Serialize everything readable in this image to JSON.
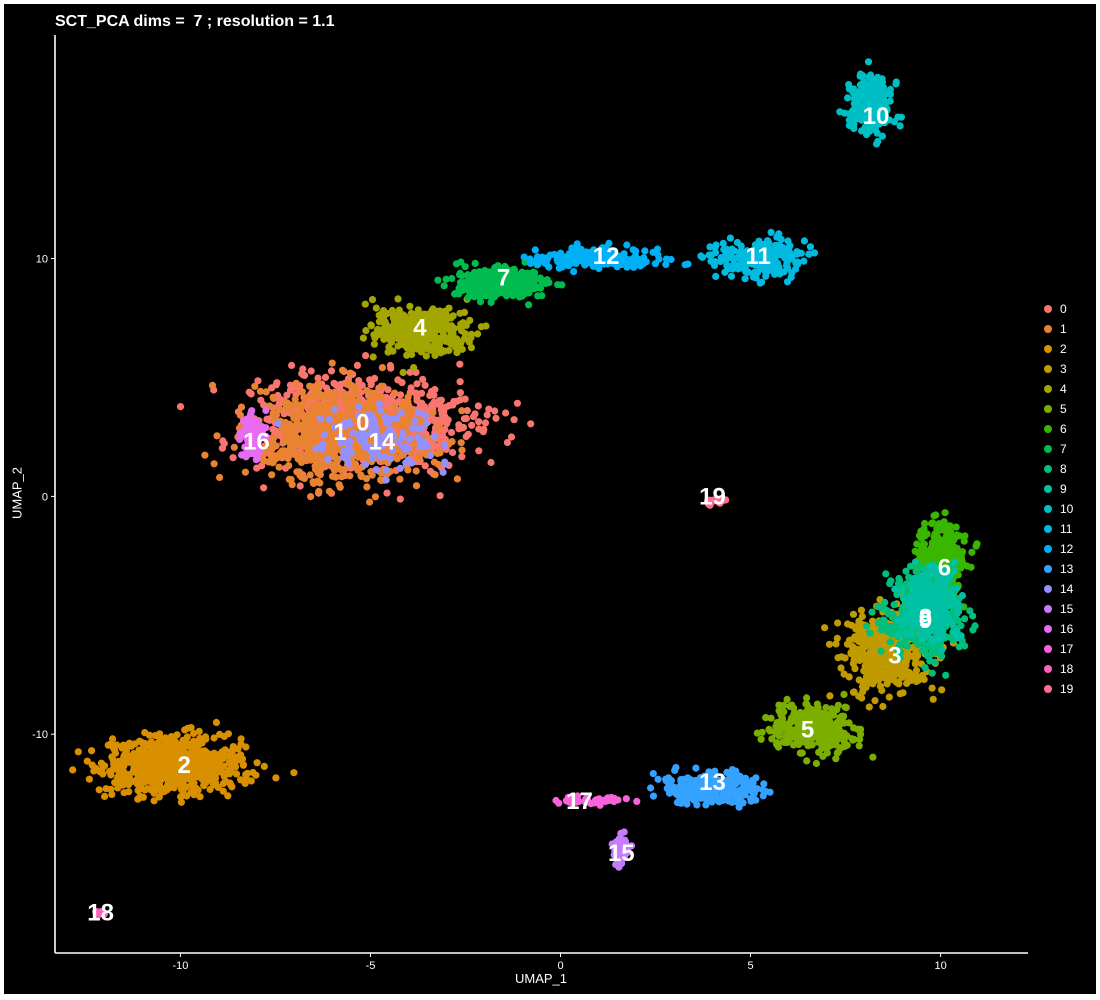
{
  "chart_data": {
    "type": "scatter",
    "title": "SCT_PCA dims =  7 ; resolution = 1.1",
    "xlabel": "UMAP_1",
    "ylabel": "UMAP_2",
    "xlim": [
      -13.3,
      12.3
    ],
    "ylim": [
      -19.2,
      19.4
    ],
    "x_ticks": [
      -10,
      -5,
      0,
      5,
      10
    ],
    "y_ticks": [
      -10,
      0,
      10
    ],
    "grid": false,
    "legend_position": "right",
    "background": "#000000",
    "axis_color": "#ffffff",
    "text_color": "#ffffff",
    "series": [
      {
        "name": "0",
        "color": "#F8766D",
        "center": [
          -5.2,
          3.1
        ],
        "label_pos": [
          -5.2,
          3.1
        ],
        "spread": [
          2.3,
          1.6
        ],
        "n": 900
      },
      {
        "name": "1",
        "color": "#EA8331",
        "center": [
          -5.8,
          2.6
        ],
        "label_pos": [
          -5.8,
          2.7
        ],
        "spread": [
          2.0,
          1.5
        ],
        "n": 700
      },
      {
        "name": "2",
        "color": "#D89000",
        "center": [
          -10.2,
          -11.3
        ],
        "label_pos": [
          -9.9,
          -11.3
        ],
        "spread": [
          1.5,
          0.9
        ],
        "n": 800
      },
      {
        "name": "3",
        "color": "#C09B00",
        "center": [
          8.6,
          -6.5
        ],
        "label_pos": [
          8.8,
          -6.7
        ],
        "spread": [
          0.9,
          1.4
        ],
        "n": 500
      },
      {
        "name": "4",
        "color": "#A3A500",
        "center": [
          -3.7,
          7.0
        ],
        "label_pos": [
          -3.7,
          7.1
        ],
        "spread": [
          1.0,
          0.8
        ],
        "n": 350
      },
      {
        "name": "5",
        "color": "#7CAE00",
        "center": [
          6.6,
          -9.8
        ],
        "label_pos": [
          6.5,
          -9.8
        ],
        "spread": [
          0.9,
          0.8
        ],
        "n": 350
      },
      {
        "name": "6",
        "color": "#39B600",
        "center": [
          10.0,
          -2.8
        ],
        "label_pos": [
          10.1,
          -3.0
        ],
        "spread": [
          0.5,
          1.4
        ],
        "n": 350
      },
      {
        "name": "7",
        "color": "#00BB4E",
        "center": [
          -1.6,
          8.9
        ],
        "label_pos": [
          -1.5,
          9.2
        ],
        "spread": [
          1.0,
          0.55
        ],
        "n": 350
      },
      {
        "name": "8",
        "color": "#00BF7D",
        "center": [
          9.5,
          -5.0
        ],
        "label_pos": [
          9.6,
          -5.1
        ],
        "spread": [
          0.8,
          1.4
        ],
        "n": 400
      },
      {
        "name": "9",
        "color": "#00C1A3",
        "center": [
          9.7,
          -4.5
        ],
        "label_pos": [
          9.6,
          -5.2
        ],
        "spread": [
          0.6,
          1.3
        ],
        "n": 300
      },
      {
        "name": "10",
        "color": "#00BFC4",
        "center": [
          8.2,
          16.5
        ],
        "label_pos": [
          8.3,
          16.0
        ],
        "spread": [
          0.5,
          1.0
        ],
        "n": 220
      },
      {
        "name": "11",
        "color": "#00BAE0",
        "center": [
          5.2,
          10.0
        ],
        "label_pos": [
          5.2,
          10.1
        ],
        "spread": [
          0.9,
          0.6
        ],
        "n": 260
      },
      {
        "name": "12",
        "color": "#00B0F6",
        "center": [
          1.0,
          10.0
        ],
        "label_pos": [
          1.2,
          10.1
        ],
        "spread": [
          1.4,
          0.35
        ],
        "n": 200
      },
      {
        "name": "13",
        "color": "#35A2FF",
        "center": [
          4.0,
          -12.3
        ],
        "label_pos": [
          4.0,
          -12.0
        ],
        "spread": [
          1.1,
          0.55
        ],
        "n": 260
      },
      {
        "name": "14",
        "color": "#9590FF",
        "center": [
          -4.7,
          2.4
        ],
        "label_pos": [
          -4.7,
          2.3
        ],
        "spread": [
          1.4,
          1.2
        ],
        "n": 120
      },
      {
        "name": "15",
        "color": "#C77CFF",
        "center": [
          1.6,
          -14.8
        ],
        "label_pos": [
          1.6,
          -15.0
        ],
        "spread": [
          0.15,
          0.5
        ],
        "n": 60
      },
      {
        "name": "16",
        "color": "#E76BF3",
        "center": [
          -8.1,
          2.6
        ],
        "label_pos": [
          -8.0,
          2.3
        ],
        "spread": [
          0.3,
          0.9
        ],
        "n": 80
      },
      {
        "name": "17",
        "color": "#FA62DB",
        "center": [
          0.8,
          -12.8
        ],
        "label_pos": [
          0.5,
          -12.8
        ],
        "spread": [
          0.8,
          0.1
        ],
        "n": 50
      },
      {
        "name": "18",
        "color": "#FF62BC",
        "center": [
          -12.1,
          -17.5
        ],
        "label_pos": [
          -12.1,
          -17.5
        ],
        "spread": [
          0.1,
          0.08
        ],
        "n": 10
      },
      {
        "name": "19",
        "color": "#FF6C91",
        "center": [
          4.0,
          -0.2
        ],
        "label_pos": [
          4.0,
          0.0
        ],
        "spread": [
          0.25,
          0.15
        ],
        "n": 15
      }
    ]
  }
}
